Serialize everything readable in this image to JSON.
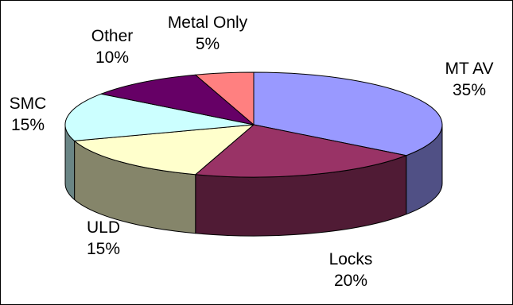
{
  "chart_data": {
    "type": "pie",
    "style": "3d",
    "title": "",
    "border": true,
    "slices": [
      {
        "label": "MT AV",
        "value": 35,
        "value_label": "35%",
        "color": "#9999FF"
      },
      {
        "label": "Locks",
        "value": 20,
        "value_label": "20%",
        "color": "#993366"
      },
      {
        "label": "ULD",
        "value": 15,
        "value_label": "15%",
        "color": "#FFFFCC"
      },
      {
        "label": "SMC",
        "value": 15,
        "value_label": "15%",
        "color": "#CCFFFF"
      },
      {
        "label": "Other",
        "value": 10,
        "value_label": "10%",
        "color": "#660066"
      },
      {
        "label": "Metal Only",
        "value": 5,
        "value_label": "5%",
        "color": "#FF8080"
      }
    ]
  }
}
